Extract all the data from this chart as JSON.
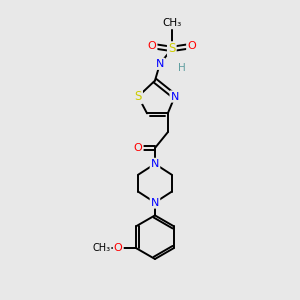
{
  "bg": "#e8e8e8",
  "bond_color": "#000000",
  "colors": {
    "S": "#cccc00",
    "O": "#ff0000",
    "N": "#0000ff",
    "C": "#000000",
    "H": "#5f9ea0",
    "bond": "#000000"
  },
  "scale": 1.0
}
